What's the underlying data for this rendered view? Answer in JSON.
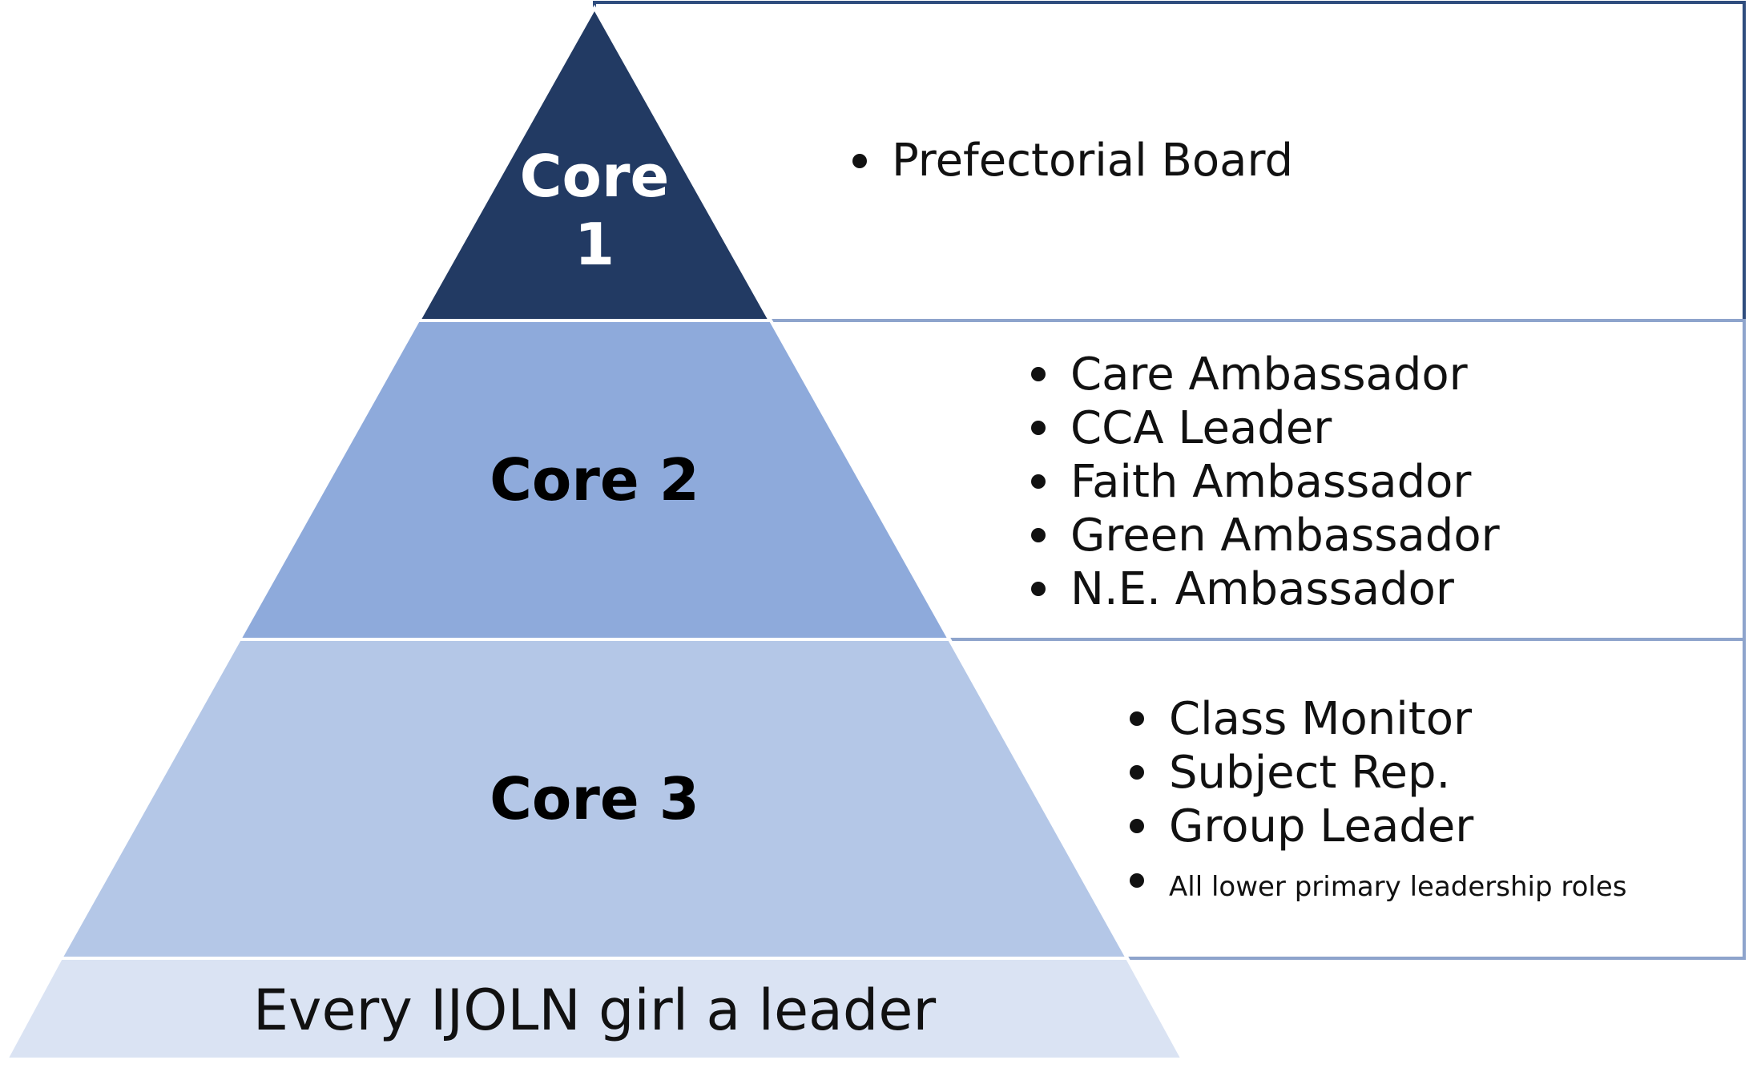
{
  "colors": {
    "core1_fill": "#223a63",
    "core2_fill": "#8eaadb",
    "core3_fill": "#b4c7e7",
    "base_fill": "#dae3f3",
    "box1_border": "#2f4d7e",
    "box_border": "#8ea4cc",
    "core1_text": "#ffffff",
    "core_text": "#000000"
  },
  "pyramid": {
    "core1": {
      "label_line1": "Core",
      "label_line2": "1",
      "items": [
        "Prefectorial Board"
      ]
    },
    "core2": {
      "label": "Core 2",
      "items": [
        "Care Ambassador",
        "CCA Leader",
        "Faith Ambassador",
        "Green Ambassador",
        "N.E. Ambassador"
      ]
    },
    "core3": {
      "label": "Core 3",
      "items": [
        "Class Monitor",
        "Subject Rep.",
        "Group Leader"
      ],
      "small_item": "All lower primary leadership roles"
    },
    "base": {
      "label": "Every IJOLN girl a leader"
    }
  }
}
